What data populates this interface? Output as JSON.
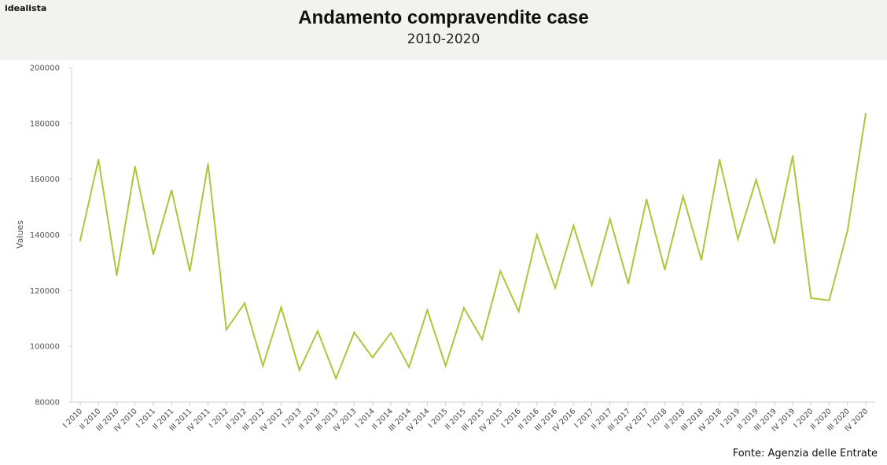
{
  "brand": "idealista",
  "source": "Fonte: Agenzia delle Entrate",
  "chart_data": {
    "type": "line",
    "title": "Andamento compravendite case",
    "subtitle": "2010-2020",
    "xlabel": "",
    "ylabel": "Values",
    "ylim": [
      80000,
      200000
    ],
    "yticks": [
      80000,
      100000,
      120000,
      140000,
      160000,
      180000,
      200000
    ],
    "grid": false,
    "line_color": "#a8c83a",
    "categories": [
      "I 2010",
      "II 2010",
      "III 2010",
      "IV 2010",
      "I 2011",
      "II 2011",
      "III 2011",
      "IV 2011",
      "I 2012",
      "II 2012",
      "III 2012",
      "IV 2012",
      "I 2013",
      "II 2013",
      "III 2013",
      "IV 2013",
      "I 2014",
      "II 2014",
      "III 2014",
      "IV 2014",
      "I 2015",
      "II 2015",
      "III 2015",
      "IV 2015",
      "I 2016",
      "II 2016",
      "III 2016",
      "IV 2016",
      "I 2017",
      "II 2017",
      "III 2017",
      "IV 2017",
      "I 2018",
      "II 2018",
      "III 2018",
      "IV 2018",
      "I 2019",
      "II 2019",
      "III 2019",
      "IV 2019",
      "I 2020",
      "II 2020",
      "III 2020",
      "IV 2020"
    ],
    "values": [
      138000,
      167000,
      125500,
      164500,
      133000,
      156000,
      127000,
      165500,
      106000,
      115500,
      93000,
      114000,
      91500,
      105500,
      88500,
      105000,
      96000,
      104800,
      92500,
      113000,
      93000,
      113800,
      102500,
      127000,
      112500,
      140000,
      121000,
      143300,
      122000,
      145700,
      122500,
      152700,
      127500,
      153800,
      131000,
      167000,
      138500,
      159800,
      137000,
      168300,
      117300,
      116500,
      141500,
      183500
    ]
  }
}
